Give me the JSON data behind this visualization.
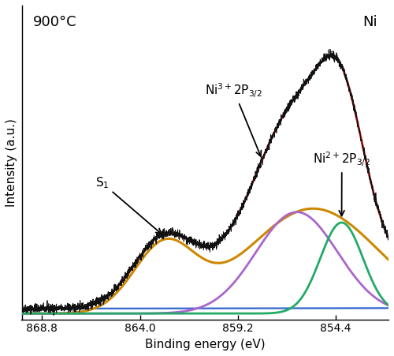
{
  "title_left": "900°C",
  "title_right": "Ni",
  "xlabel": "Binding energy (eV)",
  "ylabel": "Intensity (a.u.)",
  "xticks": [
    868.8,
    864.0,
    859.2,
    854.4
  ],
  "colors": {
    "data": "#111111",
    "envelope": "#dd2222",
    "orange": "#cc8800",
    "purple": "#aa66cc",
    "green": "#22aa66",
    "blue": "#3366cc"
  },
  "noise_seed": 42,
  "noise_amp": 0.012
}
